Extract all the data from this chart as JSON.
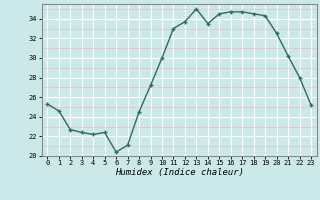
{
  "x": [
    0,
    1,
    2,
    3,
    4,
    5,
    6,
    7,
    8,
    9,
    10,
    11,
    12,
    13,
    14,
    15,
    16,
    17,
    18,
    19,
    20,
    21,
    22,
    23
  ],
  "y": [
    25.3,
    24.6,
    22.7,
    22.4,
    22.2,
    22.4,
    20.4,
    21.1,
    24.5,
    27.2,
    30.0,
    33.0,
    33.7,
    35.0,
    33.5,
    34.5,
    34.7,
    34.7,
    34.5,
    34.3,
    32.5,
    30.2,
    28.0,
    25.2
  ],
  "xlabel": "Humidex (Indice chaleur)",
  "ylim": [
    20,
    35.5
  ],
  "xlim": [
    -0.5,
    23.5
  ],
  "yticks": [
    20,
    22,
    24,
    26,
    28,
    30,
    32,
    34
  ],
  "xticks": [
    0,
    1,
    2,
    3,
    4,
    5,
    6,
    7,
    8,
    9,
    10,
    11,
    12,
    13,
    14,
    15,
    16,
    17,
    18,
    19,
    20,
    21,
    22,
    23
  ],
  "line_color": "#2d6e5e",
  "marker": "+",
  "bg_color": "#cce9e9",
  "grid_color_major": "#ffffff",
  "grid_color_minor": "#f0c0c0",
  "spine_color": "#888888",
  "xlabel_fontsize": 6.5,
  "tick_fontsize": 5.0
}
